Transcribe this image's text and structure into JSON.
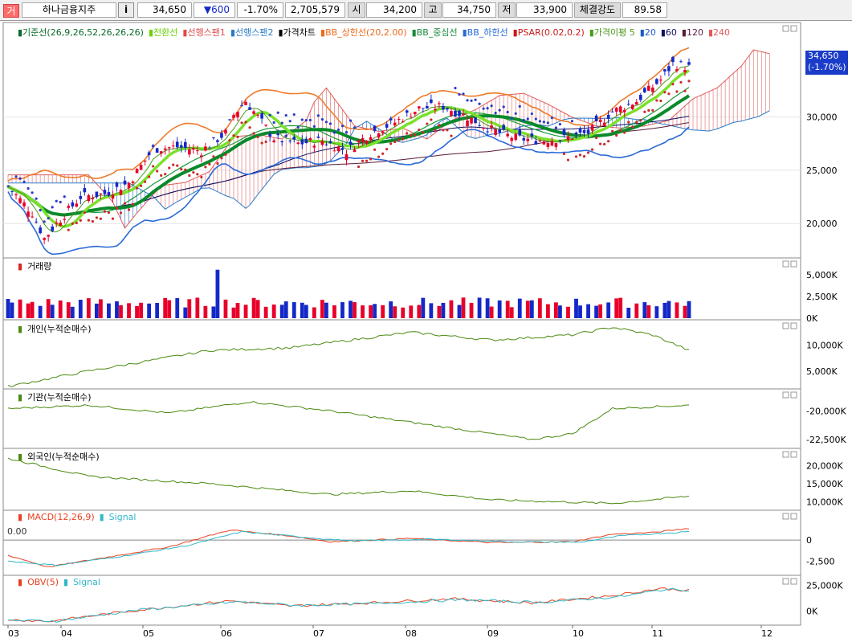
{
  "topbar": {
    "marker": "거",
    "stock_name": "하나금융지주",
    "info_button": "i",
    "price": "34,650",
    "change": "▼600",
    "change_pct": "-1.70%",
    "volume": "2,705,579",
    "open_label": "시",
    "open": "34,200",
    "high_label": "고",
    "high": "34,750",
    "low_label": "저",
    "low": "33,900",
    "strength_label": "체결강도",
    "strength": "89.58"
  },
  "colors": {
    "up": "#e8002a",
    "down": "#1428c8",
    "ma5": "#7ae12a",
    "base_line": "#0a8a2a",
    "conversion": "#7ae12a",
    "bb": "#ee7a2a",
    "bb_mid": "#1a9a3a",
    "bb_low": "#2a6ad8",
    "psar_up": "#cc2a2a",
    "psar_down": "#2a3acc",
    "span_up": "#d22",
    "span_down": "#1a5ab8",
    "green_line": "#4a8a10",
    "macd": "#e84020",
    "signal": "#30b8c8"
  },
  "price_pane": {
    "legend": [
      {
        "text": "기준선(26,9,26,52,26,26,26)",
        "color": "#0a6a2a"
      },
      {
        "text": "전환선",
        "color": "#6ad10a"
      },
      {
        "text": "선행스팬1",
        "color": "#e04a4a"
      },
      {
        "text": "선행스팬2",
        "color": "#2a7ac8"
      },
      {
        "text": "가격차트",
        "color": "#000000"
      },
      {
        "text": "BB_상한선(20,2.00)",
        "color": "#ee6a1a"
      },
      {
        "text": "BB_중심선",
        "color": "#1a8a3a"
      },
      {
        "text": "BB_하한선",
        "color": "#2a6ad8"
      },
      {
        "text": "PSAR(0.02,0.2)",
        "color": "#c81a1a"
      },
      {
        "text": "가격이평 5",
        "color": "#4a9a1a"
      },
      {
        "text": "20",
        "color": "#1a5ac8"
      },
      {
        "text": "60",
        "color": "#101060"
      },
      {
        "text": "120",
        "color": "#5a1a3a"
      },
      {
        "text": "240",
        "color": "#e05a5a"
      }
    ],
    "yticks": [
      "30,000",
      "25,000",
      "20,000"
    ],
    "current_price": "34,650",
    "current_change": "(-1.70%)"
  },
  "volume_pane": {
    "legend": "거래량",
    "yticks": [
      "5,000K",
      "2,500K",
      "0K"
    ]
  },
  "individual_pane": {
    "legend": "개인(누적순매수)",
    "yticks": [
      "10,000K",
      "5,000K"
    ]
  },
  "institution_pane": {
    "legend": "기관(누적순매수)",
    "yticks": [
      "-20,000K",
      "-22,500K"
    ]
  },
  "foreign_pane": {
    "legend": "외국인(누적순매수)",
    "yticks": [
      "20,000K",
      "15,000K",
      "10,000K"
    ]
  },
  "macd_pane": {
    "legend_macd": "MACD(12,26,9)",
    "legend_signal": "Signal",
    "zero_label": "0.00",
    "yticks": [
      "0",
      "-2,500"
    ]
  },
  "obv_pane": {
    "legend_obv": "OBV(5)",
    "legend_signal": "Signal",
    "yticks": [
      "25,000K",
      "0K"
    ]
  },
  "xaxis": [
    "03",
    "04",
    "05",
    "06",
    "07",
    "08",
    "09",
    "10",
    "11",
    "12"
  ],
  "chart_data": {
    "type": "line",
    "categories": [
      "03",
      "04",
      "05",
      "06",
      "07",
      "08",
      "09",
      "10",
      "11",
      "12"
    ],
    "series": [
      {
        "name": "가격차트",
        "values": [
          23500,
          22500,
          26500,
          31000,
          27000,
          29500,
          28000,
          28000,
          31500,
          34650
        ]
      }
    ],
    "ylim": [
      17000,
      36000
    ]
  }
}
